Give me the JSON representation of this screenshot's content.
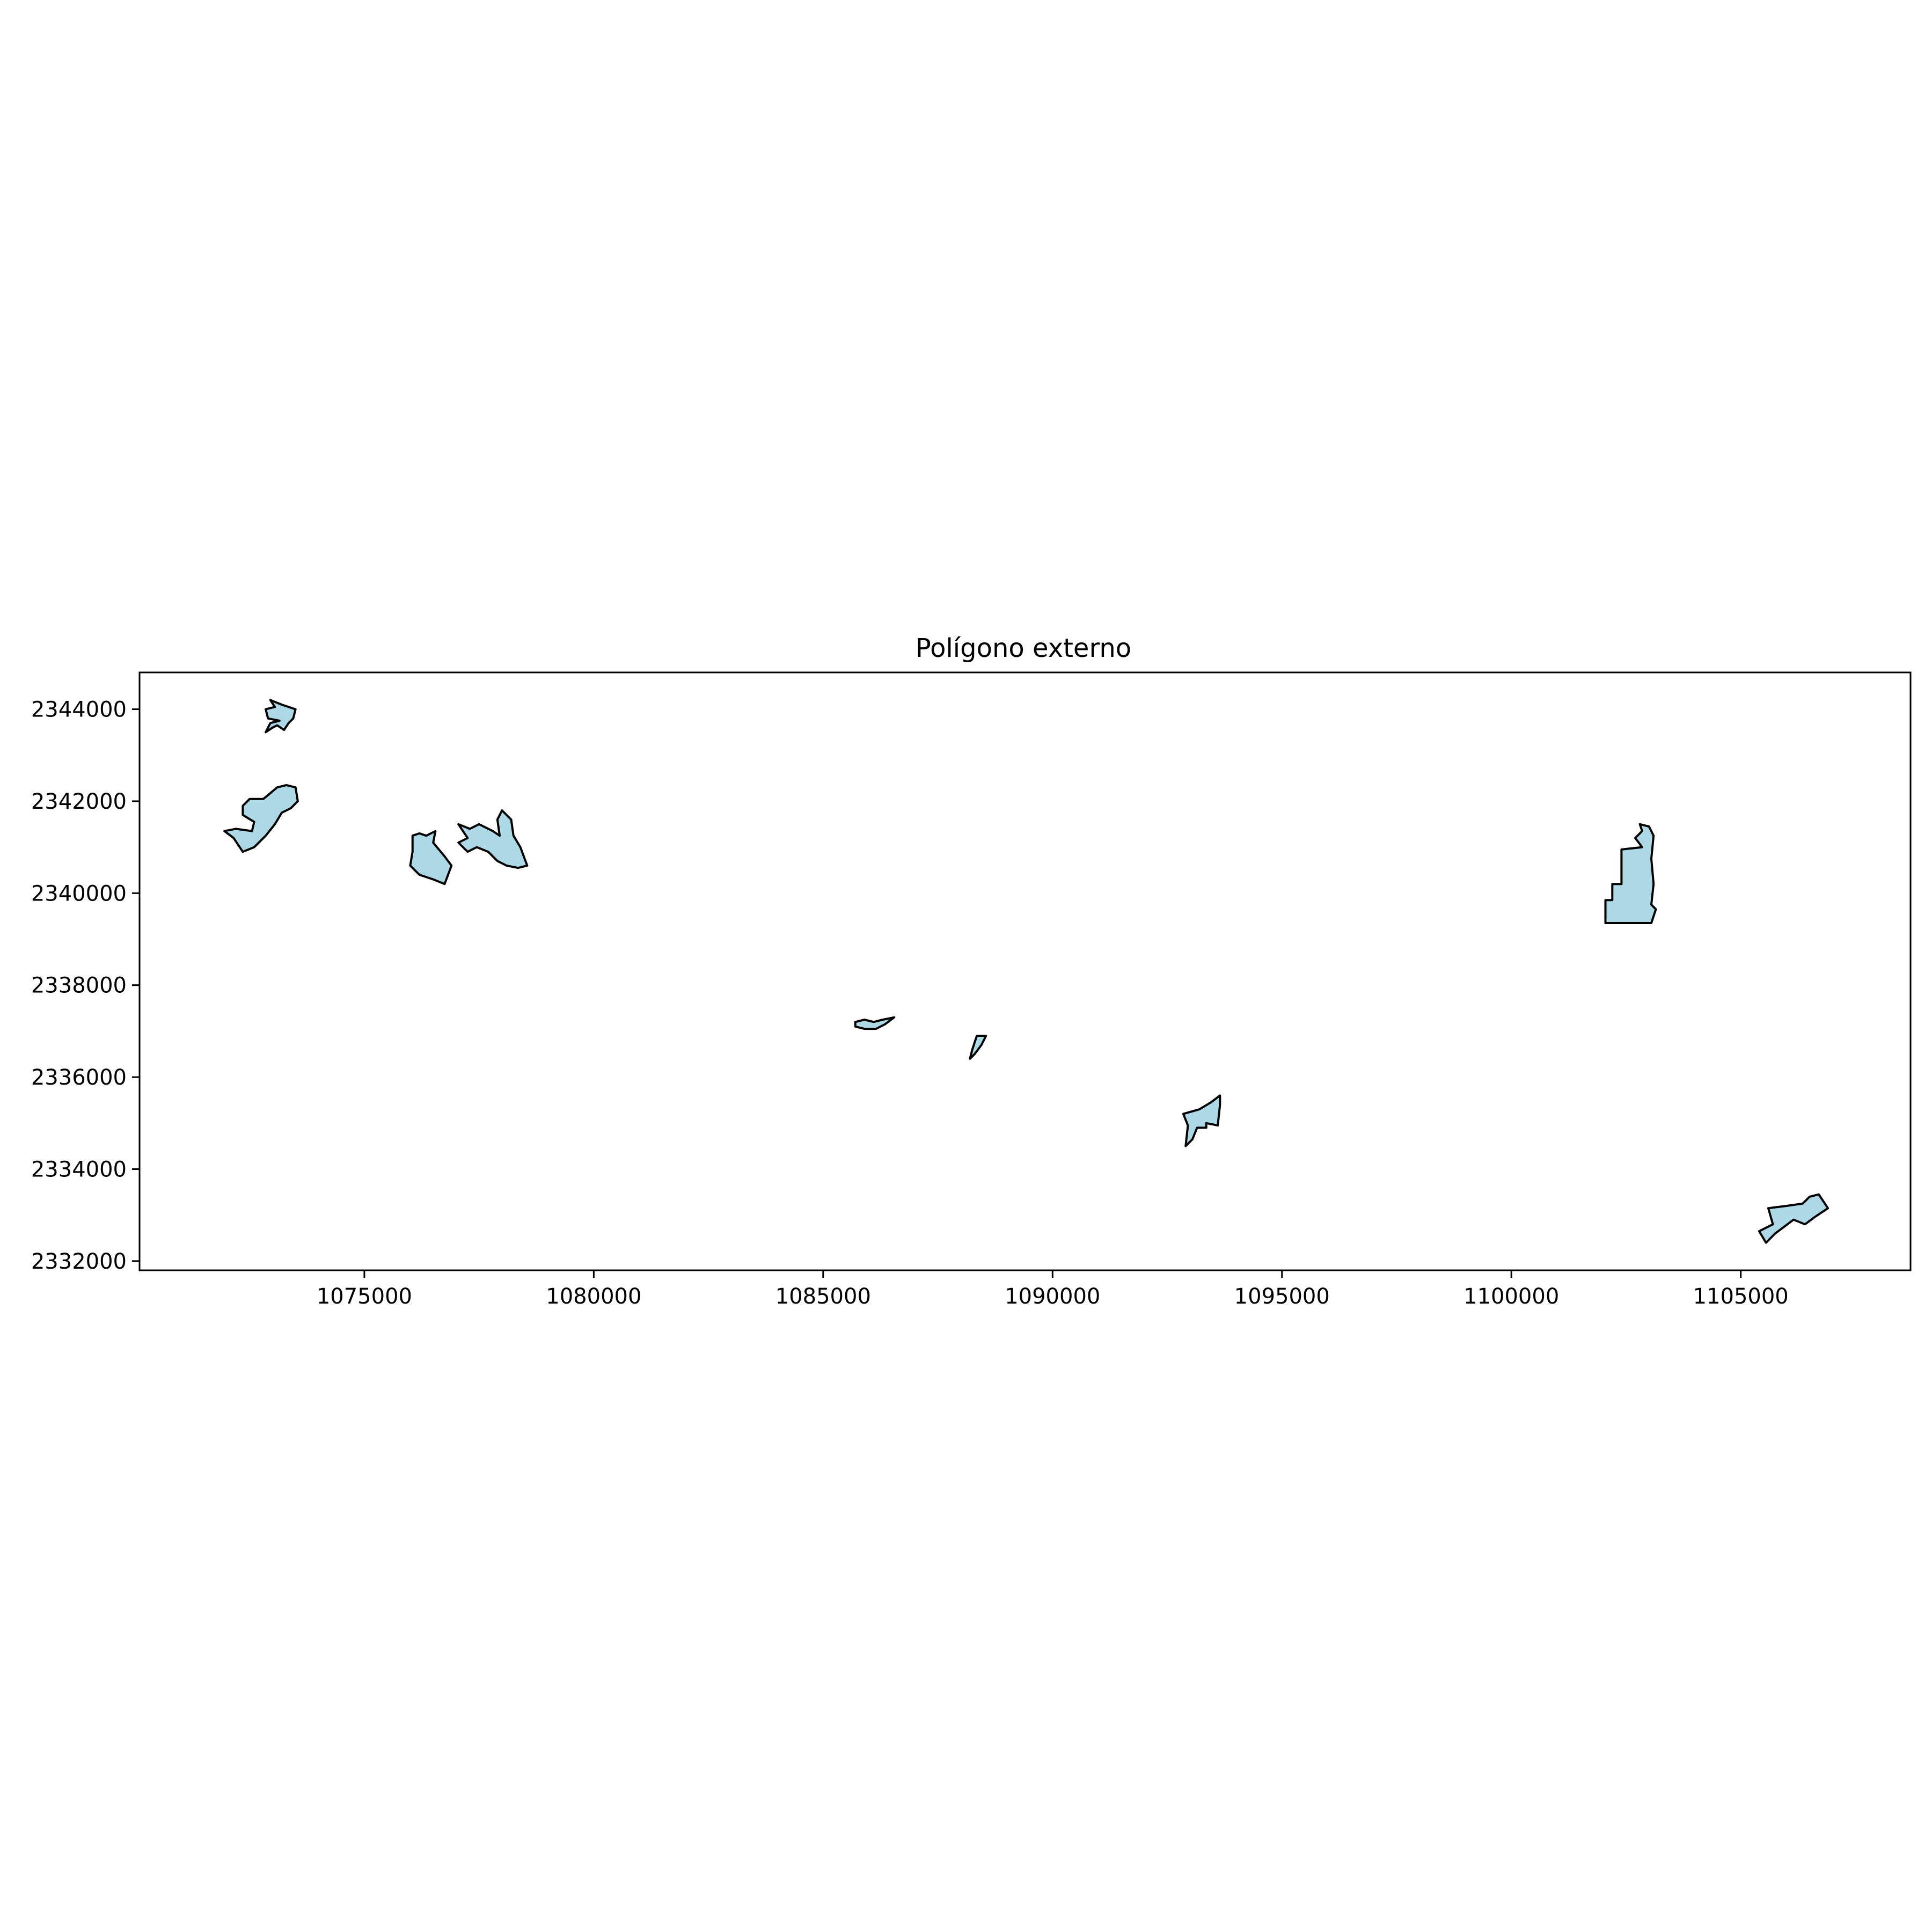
{
  "chart_data": {
    "type": "map",
    "title": "Polígono externo",
    "xlabel": "",
    "ylabel": "",
    "xlim": [
      1070100,
      1108700
    ],
    "ylim": [
      2331800,
      2344800
    ],
    "x_ticks": [
      1075000,
      1080000,
      1085000,
      1090000,
      1095000,
      1100000,
      1105000
    ],
    "x_tick_labels": [
      "1075000",
      "1080000",
      "1085000",
      "1090000",
      "1095000",
      "1100000",
      "1105000"
    ],
    "y_ticks": [
      2332000,
      2334000,
      2336000,
      2338000,
      2340000,
      2342000,
      2344000
    ],
    "y_tick_labels": [
      "2332000",
      "2334000",
      "2336000",
      "2338000",
      "2340000",
      "2342000",
      "2344000"
    ],
    "grid": false,
    "fill_color": "#add8e6",
    "edge_color": "#000000",
    "polygons": [
      {
        "id": "p1",
        "coords": [
          [
            1072950,
            2344200
          ],
          [
            1073200,
            2344100
          ],
          [
            1073500,
            2344000
          ],
          [
            1073450,
            2343800
          ],
          [
            1073350,
            2343700
          ],
          [
            1073250,
            2343550
          ],
          [
            1073100,
            2343650
          ],
          [
            1073000,
            2343600
          ],
          [
            1072850,
            2343500
          ],
          [
            1072950,
            2343700
          ],
          [
            1073150,
            2343750
          ],
          [
            1072900,
            2343800
          ],
          [
            1072850,
            2344000
          ],
          [
            1073050,
            2344050
          ],
          [
            1072950,
            2344200
          ]
        ]
      },
      {
        "id": "p2",
        "coords": [
          [
            1072350,
            2341900
          ],
          [
            1072500,
            2342050
          ],
          [
            1072800,
            2342050
          ],
          [
            1073100,
            2342300
          ],
          [
            1073300,
            2342350
          ],
          [
            1073500,
            2342300
          ],
          [
            1073550,
            2342000
          ],
          [
            1073400,
            2341850
          ],
          [
            1073200,
            2341750
          ],
          [
            1073050,
            2341500
          ],
          [
            1072850,
            2341250
          ],
          [
            1072600,
            2341000
          ],
          [
            1072350,
            2340900
          ],
          [
            1072150,
            2341200
          ],
          [
            1071950,
            2341350
          ],
          [
            1072200,
            2341400
          ],
          [
            1072550,
            2341350
          ],
          [
            1072600,
            2341550
          ],
          [
            1072350,
            2341700
          ],
          [
            1072350,
            2341900
          ]
        ]
      },
      {
        "id": "p3",
        "coords": [
          [
            1076050,
            2341250
          ],
          [
            1076200,
            2341300
          ],
          [
            1076350,
            2341250
          ],
          [
            1076550,
            2341350
          ],
          [
            1076500,
            2341100
          ],
          [
            1076750,
            2340800
          ],
          [
            1076900,
            2340600
          ],
          [
            1076750,
            2340200
          ],
          [
            1076500,
            2340300
          ],
          [
            1076200,
            2340400
          ],
          [
            1076000,
            2340600
          ],
          [
            1076050,
            2340900
          ],
          [
            1076050,
            2341250
          ]
        ]
      },
      {
        "id": "p4",
        "coords": [
          [
            1077050,
            2341500
          ],
          [
            1077300,
            2341400
          ],
          [
            1077500,
            2341500
          ],
          [
            1077800,
            2341350
          ],
          [
            1077950,
            2341250
          ],
          [
            1077900,
            2341600
          ],
          [
            1078000,
            2341800
          ],
          [
            1078200,
            2341600
          ],
          [
            1078250,
            2341250
          ],
          [
            1078400,
            2341000
          ],
          [
            1078550,
            2340600
          ],
          [
            1078350,
            2340550
          ],
          [
            1078100,
            2340600
          ],
          [
            1077900,
            2340700
          ],
          [
            1077700,
            2340900
          ],
          [
            1077450,
            2341000
          ],
          [
            1077250,
            2340900
          ],
          [
            1077050,
            2341100
          ],
          [
            1077250,
            2341200
          ],
          [
            1077050,
            2341500
          ]
        ]
      },
      {
        "id": "p5",
        "coords": [
          [
            1085700,
            2337200
          ],
          [
            1085900,
            2337250
          ],
          [
            1086100,
            2337200
          ],
          [
            1086300,
            2337250
          ],
          [
            1086550,
            2337300
          ],
          [
            1086350,
            2337150
          ],
          [
            1086150,
            2337050
          ],
          [
            1085900,
            2337050
          ],
          [
            1085700,
            2337100
          ],
          [
            1085700,
            2337200
          ]
        ]
      },
      {
        "id": "p6",
        "coords": [
          [
            1088350,
            2336900
          ],
          [
            1088550,
            2336900
          ],
          [
            1088450,
            2336700
          ],
          [
            1088300,
            2336500
          ],
          [
            1088200,
            2336400
          ],
          [
            1088250,
            2336600
          ],
          [
            1088350,
            2336900
          ]
        ]
      },
      {
        "id": "p7",
        "coords": [
          [
            1092850,
            2335200
          ],
          [
            1093200,
            2335300
          ],
          [
            1093450,
            2335450
          ],
          [
            1093650,
            2335600
          ],
          [
            1093650,
            2335400
          ],
          [
            1093600,
            2334950
          ],
          [
            1093350,
            2335000
          ],
          [
            1093350,
            2334900
          ],
          [
            1093150,
            2334900
          ],
          [
            1093050,
            2334650
          ],
          [
            1092900,
            2334500
          ],
          [
            1092950,
            2334950
          ],
          [
            1092850,
            2335200
          ]
        ]
      },
      {
        "id": "p8",
        "coords": [
          [
            1102400,
            2340950
          ],
          [
            1102850,
            2341000
          ],
          [
            1102700,
            2341200
          ],
          [
            1102850,
            2341350
          ],
          [
            1102800,
            2341500
          ],
          [
            1103000,
            2341450
          ],
          [
            1103100,
            2341250
          ],
          [
            1103050,
            2340750
          ],
          [
            1103100,
            2340200
          ],
          [
            1103050,
            2339750
          ],
          [
            1103150,
            2339650
          ],
          [
            1103050,
            2339350
          ],
          [
            1102050,
            2339350
          ],
          [
            1102050,
            2339850
          ],
          [
            1102200,
            2339850
          ],
          [
            1102200,
            2340200
          ],
          [
            1102400,
            2340200
          ],
          [
            1102400,
            2340950
          ]
        ]
      },
      {
        "id": "p9",
        "coords": [
          [
            1105400,
            2332650
          ],
          [
            1105700,
            2332800
          ],
          [
            1105600,
            2333150
          ],
          [
            1106000,
            2333200
          ],
          [
            1106350,
            2333250
          ],
          [
            1106500,
            2333400
          ],
          [
            1106700,
            2333450
          ],
          [
            1106900,
            2333150
          ],
          [
            1106600,
            2332950
          ],
          [
            1106400,
            2332800
          ],
          [
            1106150,
            2332900
          ],
          [
            1105950,
            2332750
          ],
          [
            1105750,
            2332600
          ],
          [
            1105550,
            2332400
          ],
          [
            1105400,
            2332650
          ]
        ]
      }
    ]
  }
}
